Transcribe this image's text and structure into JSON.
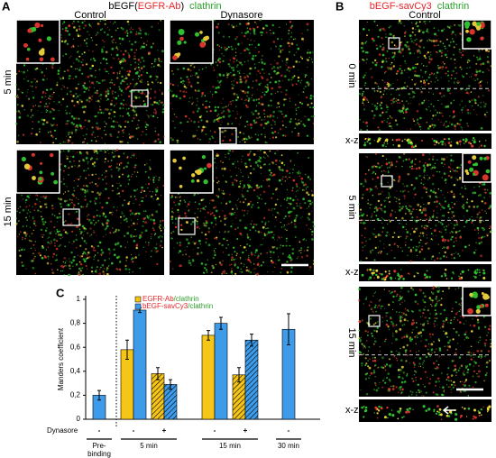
{
  "figure": {
    "panel_a": {
      "label": "A",
      "title_parts": [
        "bEGF(",
        "EGFR-Ab",
        ")",
        "clathrin"
      ],
      "title_colors": [
        "#000000",
        "#e8262a",
        "#000000",
        "#2aa02a"
      ],
      "columns": [
        "Control",
        "Dynasore"
      ],
      "rows": [
        "5 min",
        "15 min"
      ]
    },
    "panel_b": {
      "label": "B",
      "title_parts": [
        "bEGF-savCy3",
        "clathrin"
      ],
      "title_colors": [
        "#e8262a",
        "#2aa02a"
      ],
      "column": "Control",
      "rows": [
        "0 min",
        "5 min",
        "15 min"
      ],
      "xz_label": "x-z"
    },
    "panel_c_label": "C"
  },
  "chart_data": {
    "type": "bar",
    "y_label": "Manders coefficient",
    "x_row_label": "Dynasore",
    "categories": [
      "-",
      "-",
      "+",
      "-",
      "+",
      "-"
    ],
    "groups": [
      [
        "Pre-",
        "binding"
      ],
      [
        "5 min"
      ],
      [
        "15 min"
      ],
      [
        "30 min"
      ]
    ],
    "hatched": [
      false,
      false,
      true,
      false,
      true,
      false
    ],
    "series": [
      {
        "name": "EGFR-Ab/clathrin",
        "color": "#f5c518",
        "values": [
          null,
          0.58,
          0.38,
          0.7,
          0.37,
          null
        ],
        "errors": [
          null,
          0.08,
          0.05,
          0.04,
          0.06,
          null
        ]
      },
      {
        "name": "bEGF-savCy3/clathrin",
        "color": "#3d9be9",
        "values": [
          0.2,
          0.91,
          0.29,
          0.8,
          0.66,
          0.75
        ],
        "errors": [
          0.04,
          0.02,
          0.04,
          0.05,
          0.05,
          0.13
        ]
      }
    ],
    "ylim": [
      0,
      1
    ],
    "yticks": [
      0,
      {
        "value": 0.2,
        "label": "0,2"
      },
      {
        "value": 0.4,
        "label": "0,4"
      },
      {
        "value": 0.6,
        "label": "0,6"
      },
      {
        "value": 0.8,
        "label": "0,8"
      },
      1
    ]
  }
}
